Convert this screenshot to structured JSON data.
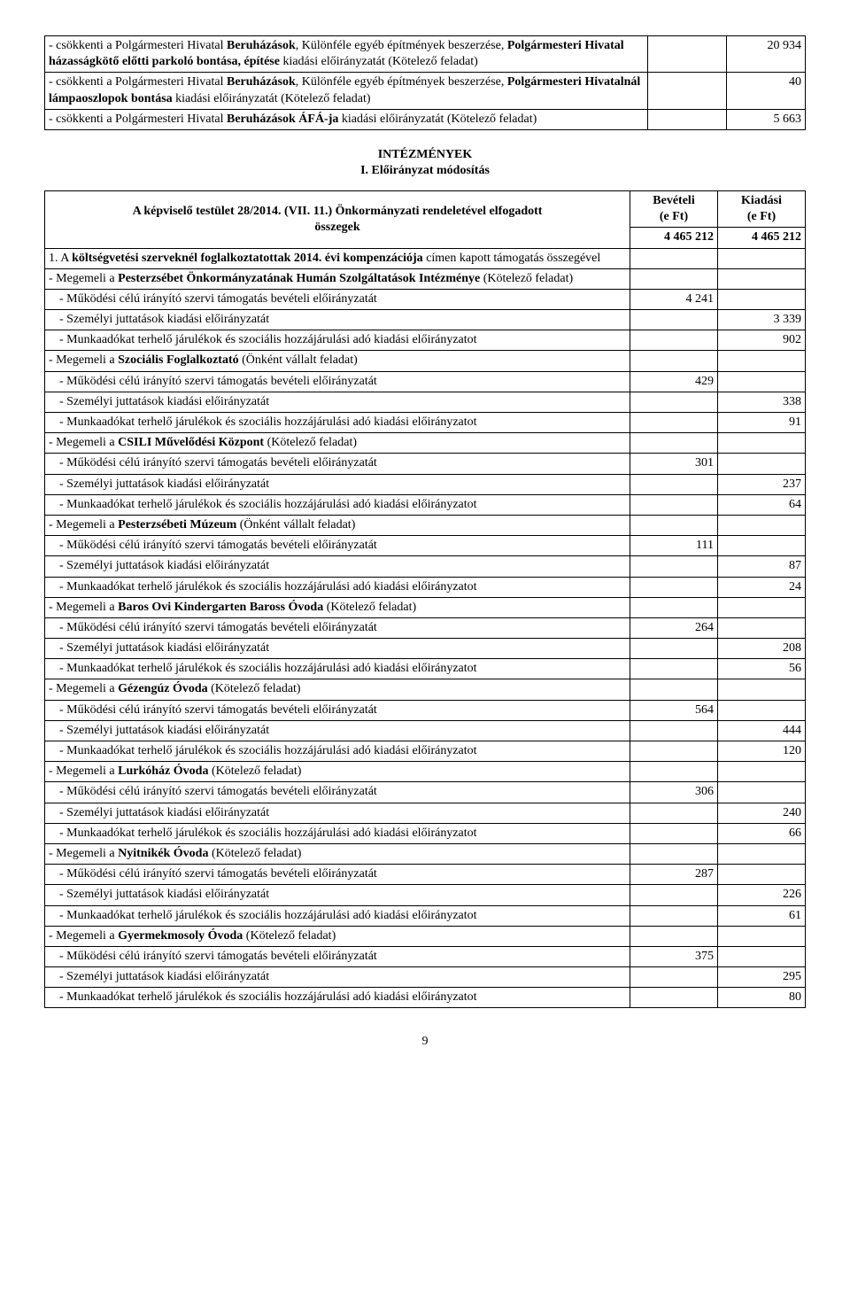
{
  "top_table": {
    "col_widths": [
      "auto",
      "80px",
      "80px"
    ],
    "rows": [
      {
        "text_pre": "- csökkenti a Polgármesteri Hivatal ",
        "bold1": "Beruházások",
        "mid": ", Különféle egyéb építmények beszerzése, ",
        "bold2": "Polgármesteri Hivatal házasságkötő előtti parkoló bontása, építése",
        "tail": " kiadási előirányzatát (Kötelező feladat)",
        "c2": "",
        "c3": "20 934"
      },
      {
        "text_pre": "- csökkenti a Polgármesteri Hivatal ",
        "bold1": "Beruházások",
        "mid": ", Különféle egyéb építmények beszerzése, ",
        "bold2": "Polgármesteri Hivatalnál lámpaoszlopok bontása",
        "tail": " kiadási előirányzatát (Kötelező feladat)",
        "c2": "",
        "c3": "40"
      },
      {
        "text_pre": "- csökkenti a Polgármesteri Hivatal ",
        "bold1": "Beruházások ÁFÁ-ja",
        "mid": "",
        "bold2": "",
        "tail": " kiadási előirányzatát (Kötelező feladat)",
        "c2": "",
        "c3": "5 663"
      }
    ]
  },
  "section": {
    "heading": "INTÉZMÉNYEK",
    "sub": "I. Előirányzat módosítás"
  },
  "main_table": {
    "header": {
      "left_html_pre": "A képviselő testület 28/2014. (VII. 11.) Önkormányzati rendeletével elfogadott",
      "left_html_line2": "összegek",
      "bev": "Bevételi",
      "kia": "Kiadási",
      "eft": "(e Ft)",
      "bev_total": "4 465 212",
      "kia_total": "4 465 212"
    },
    "rows": [
      {
        "indent": 0,
        "html": " 1. A <b>költségvetési szerveknél foglalkoztatottak 2014. évi kompenzációja</b> címen kapott támogatás összegével",
        "c2": "",
        "c3": "",
        "noborder": true
      },
      {
        "indent": 0,
        "html": " - Megemeli a <b>Pesterzsébet Önkormányzatának Humán Szolgáltatások Intézménye</b> (Kötelező feladat)",
        "c2": "",
        "c3": ""
      },
      {
        "indent": 1,
        "text": " - Működési célú irányító szervi támogatás bevételi előirányzatát",
        "c2": "4 241",
        "c3": ""
      },
      {
        "indent": 1,
        "text": " - Személyi juttatások kiadási előirányzatát",
        "c2": "",
        "c3": "3 339"
      },
      {
        "indent": 1,
        "text": " - Munkaadókat terhelő járulékok és szociális hozzájárulási adó kiadási előirányzatot",
        "c2": "",
        "c3": "902"
      },
      {
        "indent": 0,
        "html": " - Megemeli a <b>Szociális Foglalkoztató</b> (Önként vállalt feladat)",
        "c2": "",
        "c3": ""
      },
      {
        "indent": 1,
        "text": " - Működési célú irányító szervi támogatás bevételi előirányzatát",
        "c2": "429",
        "c3": ""
      },
      {
        "indent": 1,
        "text": " - Személyi juttatások kiadási előirányzatát",
        "c2": "",
        "c3": "338"
      },
      {
        "indent": 1,
        "text": " - Munkaadókat terhelő járulékok és szociális hozzájárulási adó kiadási előirányzatot",
        "c2": "",
        "c3": "91"
      },
      {
        "indent": 0,
        "html": " - Megemeli a <b>CSILI Művelődési Központ</b> (Kötelező feladat)",
        "c2": "",
        "c3": ""
      },
      {
        "indent": 1,
        "text": " - Működési célú irányító szervi támogatás bevételi előirányzatát",
        "c2": "301",
        "c3": ""
      },
      {
        "indent": 1,
        "text": " - Személyi juttatások kiadási előirányzatát",
        "c2": "",
        "c3": "237"
      },
      {
        "indent": 1,
        "text": " - Munkaadókat terhelő járulékok és szociális hozzájárulási adó kiadási előirányzatot",
        "c2": "",
        "c3": "64"
      },
      {
        "indent": 0,
        "html": " - Megemeli a <b>Pesterzsébeti Múzeum</b> (Önként vállalt feladat)",
        "c2": "",
        "c3": ""
      },
      {
        "indent": 1,
        "text": " - Működési célú irányító szervi támogatás bevételi előirányzatát",
        "c2": "111",
        "c3": ""
      },
      {
        "indent": 1,
        "text": " - Személyi juttatások kiadási előirányzatát",
        "c2": "",
        "c3": "87"
      },
      {
        "indent": 1,
        "text": " - Munkaadókat terhelő járulékok és szociális hozzájárulási adó kiadási előirányzatot",
        "c2": "",
        "c3": "24"
      },
      {
        "indent": 0,
        "html": " - Megemeli a <b>Baros Ovi Kindergarten Baross Óvoda</b> (Kötelező feladat)",
        "c2": "",
        "c3": ""
      },
      {
        "indent": 1,
        "text": " - Működési célú irányító szervi támogatás bevételi előirányzatát",
        "c2": "264",
        "c3": ""
      },
      {
        "indent": 1,
        "text": " - Személyi juttatások kiadási előirányzatát",
        "c2": "",
        "c3": "208"
      },
      {
        "indent": 1,
        "text": " - Munkaadókat terhelő járulékok és szociális hozzájárulási adó kiadási előirányzatot",
        "c2": "",
        "c3": "56"
      },
      {
        "indent": 0,
        "html": " - Megemeli a <b>Gézengúz Óvoda</b> (Kötelező feladat)",
        "c2": "",
        "c3": ""
      },
      {
        "indent": 1,
        "text": " - Működési célú irányító szervi támogatás bevételi előirányzatát",
        "c2": "564",
        "c3": ""
      },
      {
        "indent": 1,
        "text": " - Személyi juttatások kiadási előirányzatát",
        "c2": "",
        "c3": "444"
      },
      {
        "indent": 1,
        "text": " - Munkaadókat terhelő járulékok és szociális hozzájárulási adó kiadási előirányzatot",
        "c2": "",
        "c3": "120"
      },
      {
        "indent": 0,
        "html": " - Megemeli a <b>Lurkóház Óvoda</b> (Kötelező feladat)",
        "c2": "",
        "c3": ""
      },
      {
        "indent": 1,
        "text": " - Működési célú irányító szervi támogatás bevételi előirányzatát",
        "c2": "306",
        "c3": ""
      },
      {
        "indent": 1,
        "text": " - Személyi juttatások kiadási előirányzatát",
        "c2": "",
        "c3": "240"
      },
      {
        "indent": 1,
        "text": " - Munkaadókat terhelő járulékok és szociális hozzájárulási adó kiadási előirányzatot",
        "c2": "",
        "c3": "66"
      },
      {
        "indent": 0,
        "html": " - Megemeli a <b>Nyitnikék Óvoda</b> (Kötelező feladat)",
        "c2": "",
        "c3": ""
      },
      {
        "indent": 1,
        "text": " - Működési célú irányító szervi támogatás bevételi előirányzatát",
        "c2": "287",
        "c3": ""
      },
      {
        "indent": 1,
        "text": " - Személyi juttatások kiadási előirányzatát",
        "c2": "",
        "c3": "226"
      },
      {
        "indent": 1,
        "text": " - Munkaadókat terhelő járulékok és szociális hozzájárulási adó kiadási előirányzatot",
        "c2": "",
        "c3": "61"
      },
      {
        "indent": 0,
        "html": " - Megemeli a <b>Gyermekmosoly Óvoda</b> (Kötelező feladat)",
        "c2": "",
        "c3": ""
      },
      {
        "indent": 1,
        "text": " - Működési célú irányító szervi támogatás bevételi előirányzatát",
        "c2": "375",
        "c3": ""
      },
      {
        "indent": 1,
        "text": " - Személyi juttatások kiadási előirányzatát",
        "c2": "",
        "c3": "295"
      },
      {
        "indent": 1,
        "text": " - Munkaadókat terhelő járulékok és szociális hozzájárulási adó kiadási előirányzatot",
        "c2": "",
        "c3": "80"
      }
    ]
  },
  "page_number": "9"
}
